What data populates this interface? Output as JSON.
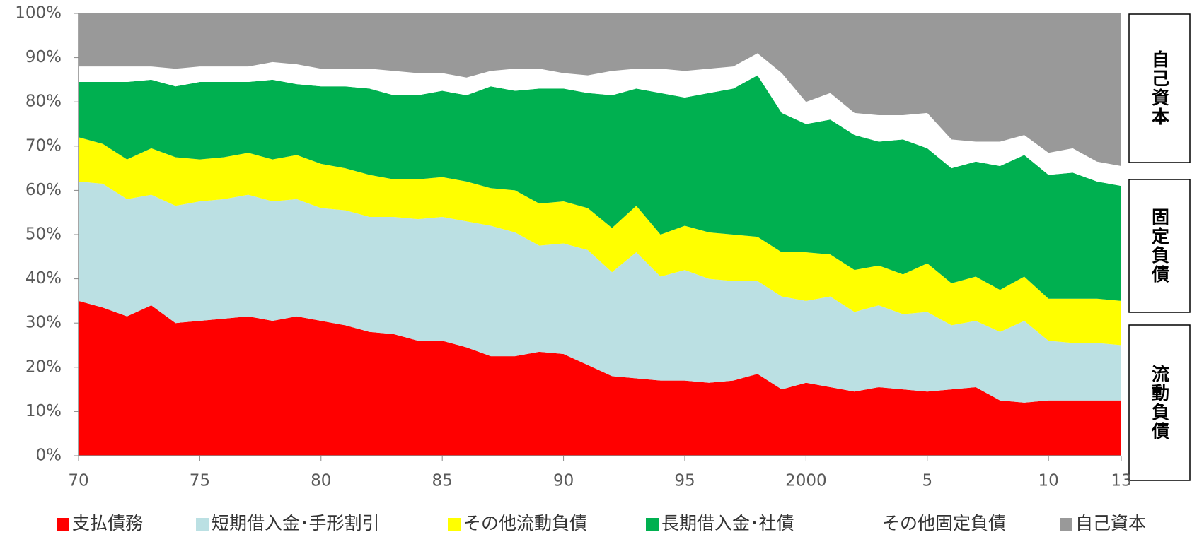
{
  "chart_data": {
    "type": "stacked_area",
    "x": [
      1970,
      1971,
      1972,
      1973,
      1974,
      1975,
      1976,
      1977,
      1978,
      1979,
      1980,
      1981,
      1982,
      1983,
      1984,
      1985,
      1986,
      1987,
      1988,
      1989,
      1990,
      1991,
      1992,
      1993,
      1994,
      1995,
      1996,
      1997,
      1998,
      1999,
      2000,
      2001,
      2002,
      2003,
      2004,
      2005,
      2006,
      2007,
      2008,
      2009,
      2010,
      2011,
      2012,
      2013
    ],
    "series": [
      {
        "name": "支払債務",
        "color": "#ff0000",
        "values": [
          35,
          33.5,
          31.5,
          34,
          30,
          30.5,
          31,
          31.5,
          30.5,
          31.5,
          30.5,
          29.5,
          28,
          27.5,
          26,
          26,
          24.5,
          22.5,
          22.5,
          23.5,
          23,
          20.5,
          18,
          17.5,
          17,
          17,
          16.5,
          17,
          18.5,
          15,
          16.5,
          15.5,
          14.5,
          15.5,
          15,
          14.5,
          15,
          15.5,
          12.5,
          12,
          12.5,
          12.5,
          12.5,
          12.5
        ]
      },
      {
        "name": "短期借入金･手形割引",
        "color": "#bbe0e3",
        "values": [
          27,
          28,
          26.5,
          25,
          26.5,
          27,
          27,
          27.5,
          27,
          26.5,
          25.5,
          26,
          26,
          26.5,
          27.5,
          28,
          28.5,
          29.5,
          28,
          24,
          25,
          26,
          23.5,
          28.5,
          23.5,
          25,
          23.5,
          22.5,
          21,
          21,
          18.5,
          20.5,
          18,
          18.5,
          17,
          18,
          14.5,
          15,
          15.5,
          18.5,
          13.5,
          13,
          13,
          12.5
        ]
      },
      {
        "name": "その他流動負債",
        "color": "#ffff00",
        "values": [
          10,
          9,
          9,
          10.5,
          11,
          9.5,
          9.5,
          9.5,
          9.5,
          10,
          10,
          9.5,
          9.5,
          8.5,
          9,
          9,
          9,
          8.5,
          9.5,
          9.5,
          9.5,
          9.5,
          10,
          10.5,
          9.5,
          10,
          10.5,
          10.5,
          10,
          10,
          11,
          9.5,
          9.5,
          9,
          9,
          11,
          9.5,
          10,
          9.5,
          10,
          9.5,
          10,
          10,
          10
        ]
      },
      {
        "name": "長期借入金･社債",
        "color": "#00b050",
        "values": [
          12.5,
          14,
          17.5,
          15.5,
          16,
          17.5,
          17,
          16,
          18,
          16,
          17.5,
          18.5,
          19.5,
          19,
          19,
          19.5,
          19.5,
          23,
          22.5,
          26,
          25.5,
          26,
          30,
          26.5,
          32,
          29,
          31.5,
          33,
          36.5,
          31.5,
          29,
          30.5,
          30.5,
          28,
          30.5,
          26,
          26,
          26,
          28,
          27.5,
          28,
          28.5,
          26.5,
          26
        ]
      },
      {
        "name": "その他固定負債",
        "color": "#ffffff",
        "values": [
          3.5,
          3.5,
          3.5,
          3,
          4,
          3.5,
          3.5,
          3.5,
          4,
          4.5,
          4,
          4,
          4.5,
          5.5,
          5,
          4,
          4,
          3.5,
          5,
          4.5,
          3.5,
          4,
          5.5,
          4.5,
          5.5,
          6,
          5.5,
          5,
          5,
          9,
          5,
          6,
          5,
          6,
          5.5,
          8,
          6.5,
          4.5,
          5.5,
          4.5,
          5,
          5.5,
          4.5,
          4.5
        ]
      },
      {
        "name": "自己資本",
        "color": "#999999",
        "values": [
          12,
          12,
          12,
          12,
          12.5,
          12,
          12,
          12,
          11,
          11.5,
          12.5,
          12.5,
          12.5,
          13,
          13.5,
          13.5,
          14.5,
          13,
          12.5,
          12.5,
          13.5,
          14,
          13,
          12.5,
          12.5,
          13,
          12.5,
          12,
          9,
          13.5,
          20,
          18,
          22.5,
          23,
          23,
          22.5,
          28.5,
          29,
          29,
          27.5,
          31.5,
          30.5,
          33.5,
          34.5
        ]
      }
    ],
    "xlim": [
      1970,
      2013
    ],
    "xticks": [
      {
        "value": 1970,
        "label": "70"
      },
      {
        "value": 1975,
        "label": "75"
      },
      {
        "value": 1980,
        "label": "80"
      },
      {
        "value": 1985,
        "label": "85"
      },
      {
        "value": 1990,
        "label": "90"
      },
      {
        "value": 1995,
        "label": "95"
      },
      2000,
      {
        "value": 2005,
        "label": "5"
      },
      {
        "value": 2010,
        "label": "10"
      },
      {
        "value": 2013,
        "label": "13"
      }
    ],
    "ylim": [
      0,
      100
    ],
    "yticks": [
      {
        "value": 0,
        "label": "0%"
      },
      {
        "value": 10,
        "label": "10%"
      },
      {
        "value": 20,
        "label": "20%"
      },
      {
        "value": 30,
        "label": "30%"
      },
      {
        "value": 40,
        "label": "40%"
      },
      {
        "value": 50,
        "label": "50%"
      },
      {
        "value": 60,
        "label": "60%"
      },
      {
        "value": 70,
        "label": "70%"
      },
      {
        "value": 80,
        "label": "80%"
      },
      {
        "value": 90,
        "label": "90%"
      },
      {
        "value": 100,
        "label": "100%"
      }
    ],
    "annotations": [
      "自己資本",
      "固定負債",
      "流動負債"
    ],
    "legend": "bottom"
  }
}
